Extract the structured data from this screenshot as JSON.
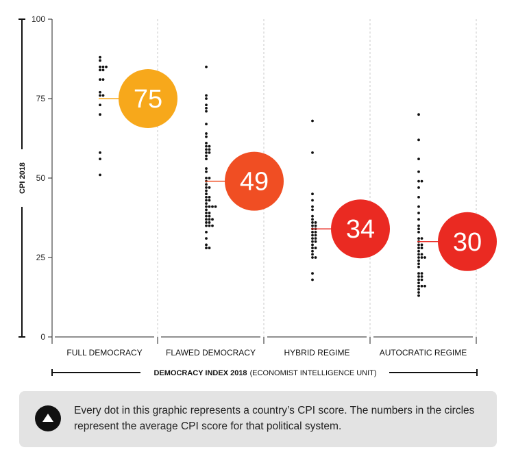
{
  "chart_data": {
    "type": "scatter",
    "xlabel": "DEMOCRACY INDEX 2018",
    "xlabel_sub": "(ECONOMIST INTELLIGENCE UNIT)",
    "ylabel": "CPI 2018",
    "ylim": [
      0,
      100
    ],
    "yticks": [
      "0",
      "25",
      "50",
      "75",
      "100"
    ],
    "categories": [
      "FULL DEMOCRACY",
      "FLAWED DEMOCRACY",
      "HYBRID REGIME",
      "AUTOCRATIC REGIME"
    ],
    "averages": [
      {
        "category": "FULL DEMOCRACY",
        "value": 75,
        "label": "75",
        "color": "#f7a81b"
      },
      {
        "category": "FLAWED DEMOCRACY",
        "value": 49,
        "label": "49",
        "color": "#f04e23"
      },
      {
        "category": "HYBRID REGIME",
        "value": 34,
        "label": "34",
        "color": "#ea2a22"
      },
      {
        "category": "AUTOCRATIC REGIME",
        "value": 30,
        "label": "30",
        "color": "#ea2a22"
      }
    ],
    "series": [
      {
        "category": "FULL DEMOCRACY",
        "values": [
          88,
          87,
          85,
          85,
          85,
          84,
          84,
          81,
          81,
          77,
          76,
          76,
          73,
          70,
          58,
          56,
          51
        ]
      },
      {
        "category": "FLAWED DEMOCRACY",
        "values": [
          85,
          76,
          75,
          73,
          72,
          71,
          67,
          64,
          63,
          61,
          60,
          60,
          59,
          59,
          58,
          58,
          57,
          56,
          53,
          52,
          50,
          50,
          49,
          48,
          47,
          47,
          46,
          45,
          44,
          44,
          43,
          43,
          42,
          41,
          41,
          41,
          41,
          40,
          39,
          39,
          38,
          38,
          37,
          37,
          37,
          36,
          36,
          35,
          35,
          35,
          33,
          31,
          29,
          28,
          28
        ]
      },
      {
        "category": "HYBRID REGIME",
        "values": [
          68,
          58,
          45,
          43,
          41,
          40,
          38,
          37,
          36,
          36,
          35,
          35,
          34,
          34,
          33,
          33,
          32,
          32,
          31,
          31,
          30,
          30,
          29,
          28,
          28,
          27,
          26,
          25,
          25,
          20,
          18
        ]
      },
      {
        "category": "AUTOCRATIC REGIME",
        "values": [
          70,
          62,
          56,
          52,
          49,
          49,
          47,
          44,
          41,
          39,
          37,
          35,
          34,
          33,
          31,
          31,
          30,
          29,
          29,
          28,
          28,
          27,
          26,
          26,
          25,
          25,
          25,
          24,
          23,
          22,
          20,
          20,
          19,
          19,
          18,
          18,
          17,
          16,
          16,
          16,
          15,
          14,
          13
        ]
      }
    ]
  },
  "note": {
    "text": "Every dot in this graphic represents a country’s CPI score. The numbers in the circles represent the average CPI score for that political system.",
    "icon": "triangle-up-icon"
  }
}
